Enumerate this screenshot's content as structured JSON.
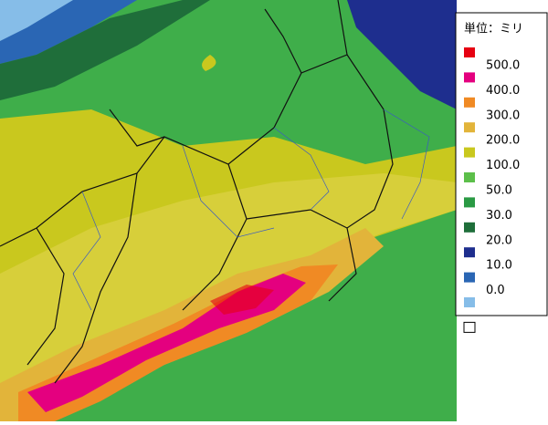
{
  "legend": {
    "title": "単位：ミリ",
    "labels": [
      "500.0",
      "400.0",
      "300.0",
      "200.0",
      "100.0",
      "50.0",
      "30.0",
      "20.0",
      "10.0",
      "0.0"
    ],
    "colors": [
      "#e60012",
      "#e4007f",
      "#f08a24",
      "#e2b43a",
      "#c9c81e",
      "#5cbf4a",
      "#2a9a44",
      "#1f6e3a",
      "#1e2e8e",
      "#2a66b4",
      "#86bde8",
      "#ffffff"
    ]
  }
}
